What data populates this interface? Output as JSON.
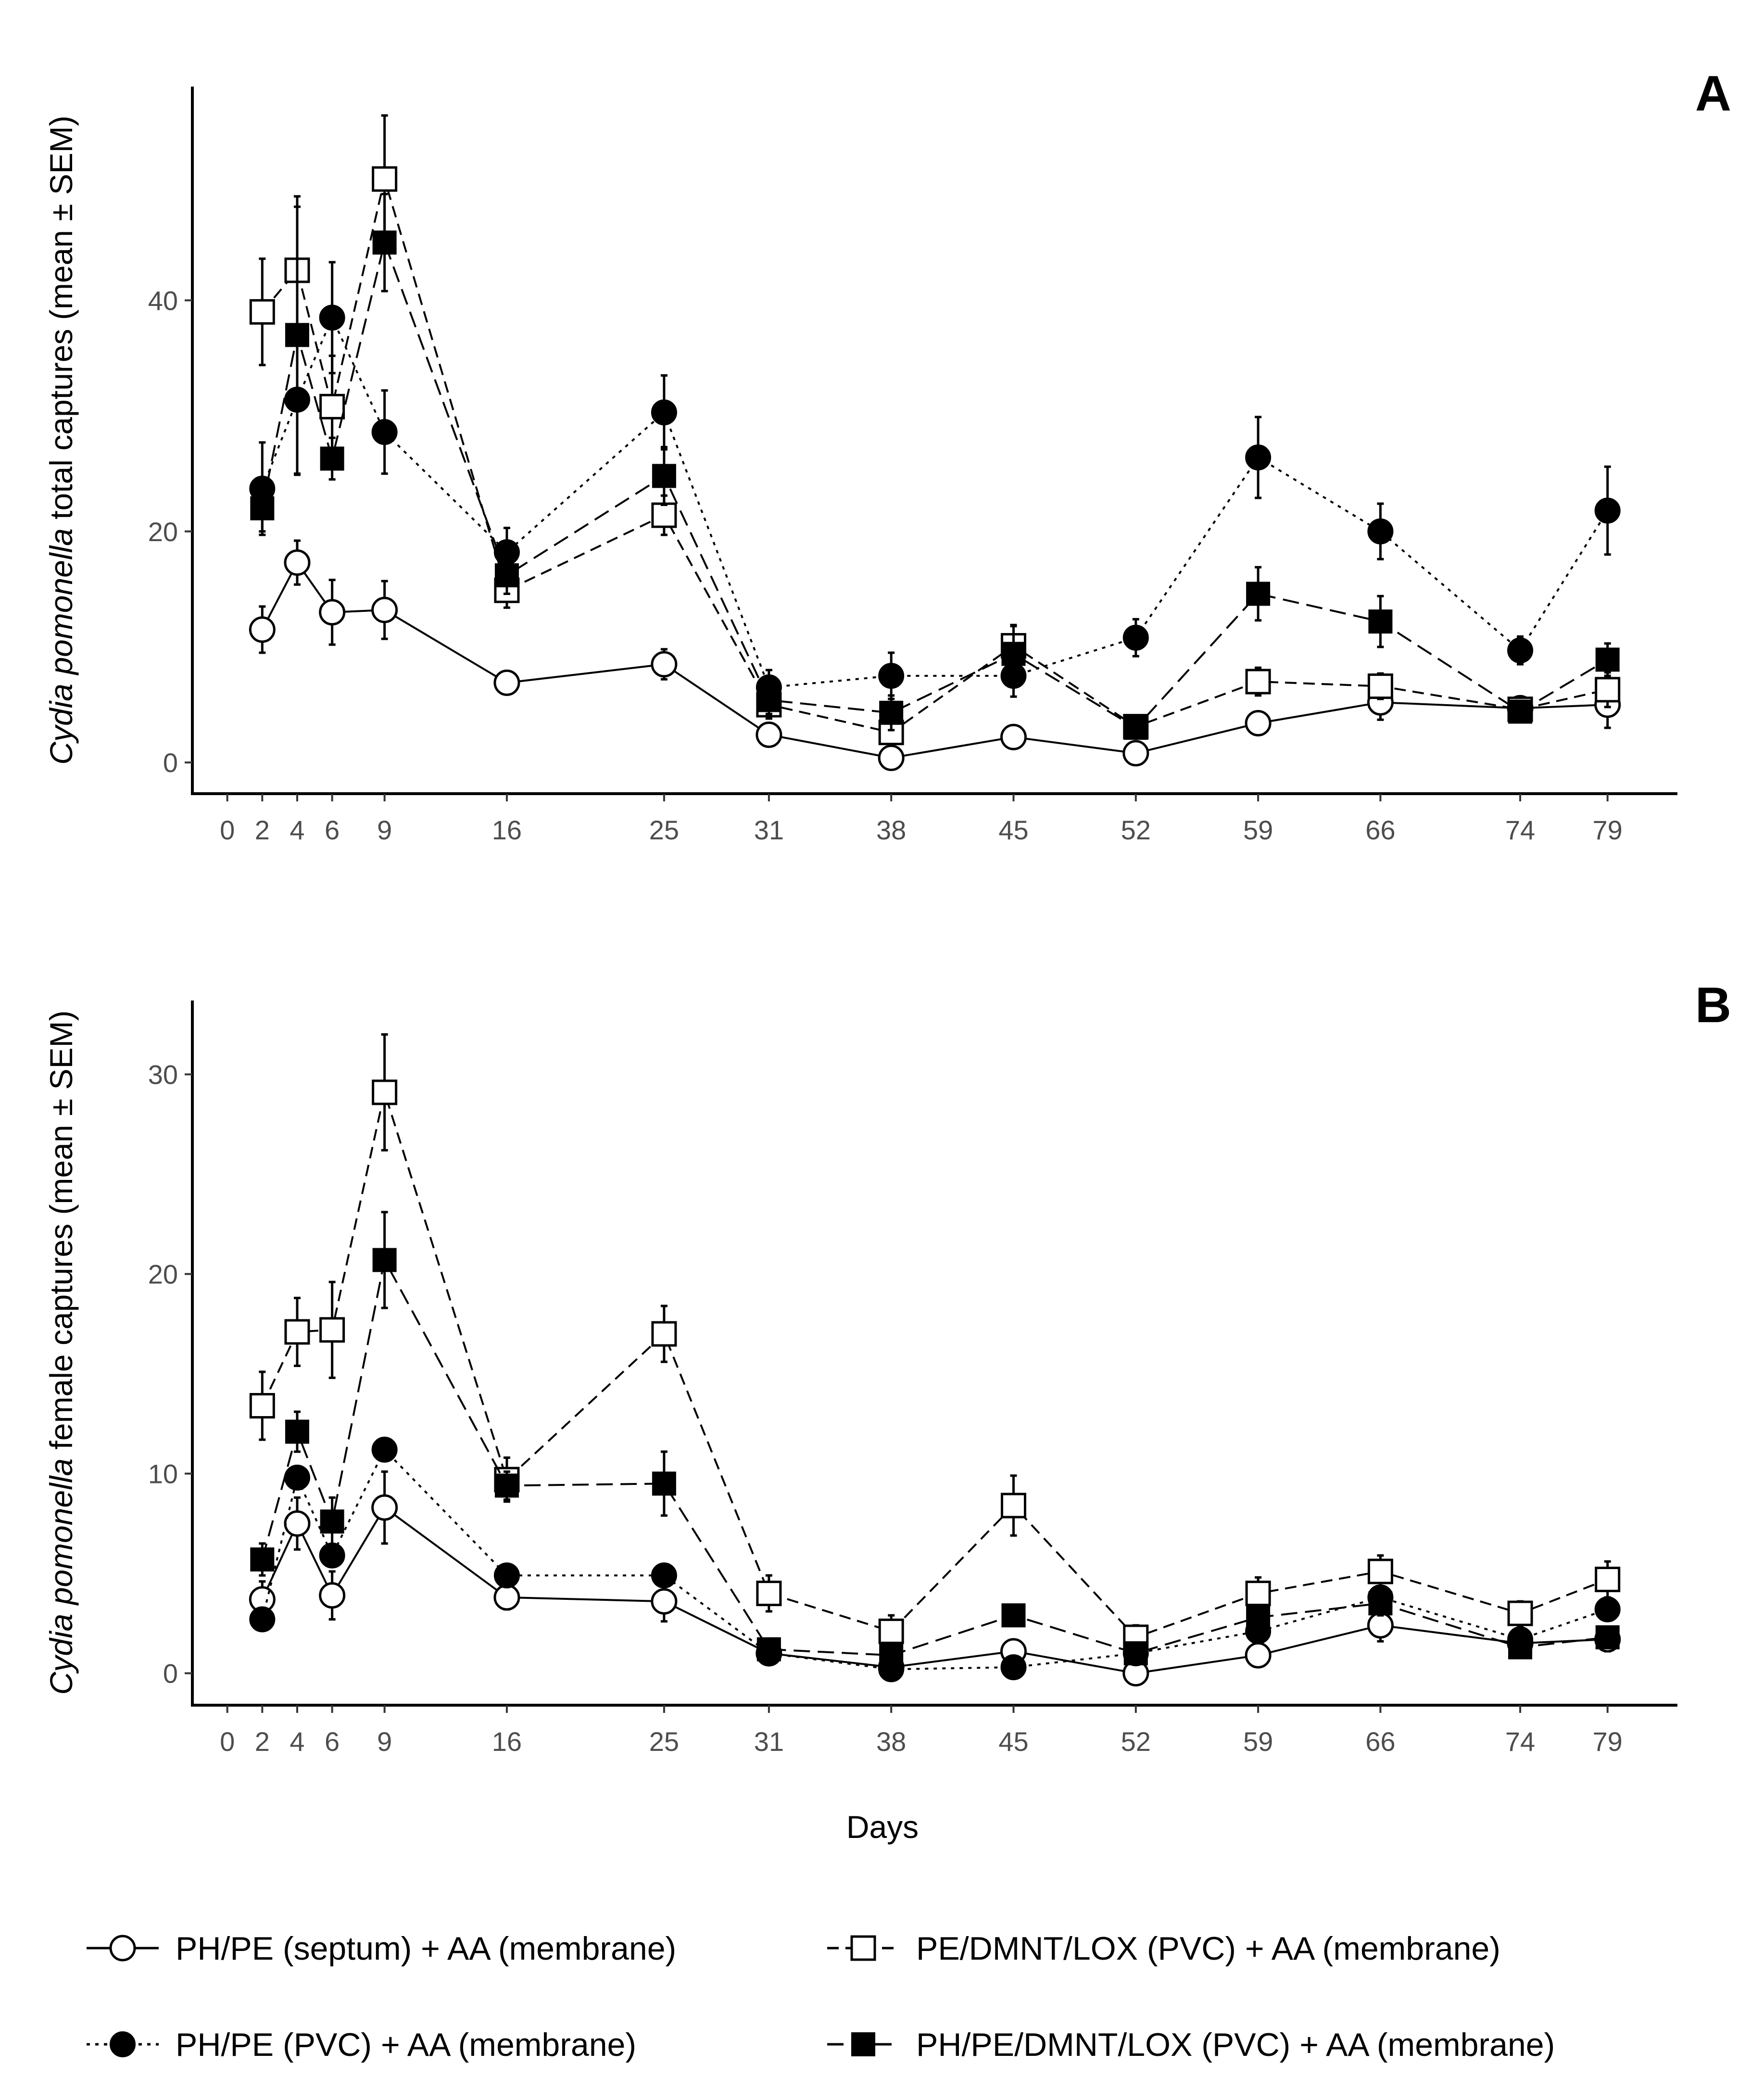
{
  "figure": {
    "x_axis_title": "Days"
  },
  "legend": [
    {
      "series_id": "s1",
      "label": "PH/PE (septum) + AA (membrane)"
    },
    {
      "series_id": "s3",
      "label": "PE/DMNT/LOX (PVC) + AA (membrane)"
    },
    {
      "series_id": "s2",
      "label": "PH/PE (PVC) + AA (membrane)"
    },
    {
      "series_id": "s4",
      "label": "PH/PE/DMNT/LOX (PVC) + AA (membrane)"
    }
  ],
  "chart_data": [
    {
      "type": "line",
      "panel": "A",
      "ylabel_italic": "Cydia pomonella",
      "ylabel_rest": " total captures (mean ± SEM)",
      "x_ticks": [
        0,
        2,
        4,
        6,
        9,
        16,
        25,
        31,
        38,
        45,
        52,
        59,
        66,
        74,
        79
      ],
      "y_ticks": [
        0,
        20,
        40
      ],
      "xlim": [
        -2,
        83
      ],
      "ylim": [
        -2.7,
        58.5
      ],
      "x": [
        2,
        4,
        6,
        9,
        16,
        25,
        31,
        38,
        45,
        52,
        59,
        66,
        74,
        79
      ],
      "series": [
        {
          "id": "s1",
          "marker": "open-circle",
          "line": "solid",
          "values": [
            11.5,
            17.3,
            13.0,
            13.2,
            6.9,
            8.5,
            2.4,
            0.4,
            2.2,
            0.8,
            3.4,
            5.2,
            4.7,
            5.0
          ],
          "errors": [
            2.0,
            1.9,
            2.8,
            2.5,
            0.6,
            1.3,
            0.8,
            0.3,
            0.7,
            0.5,
            0.8,
            1.5,
            0.6,
            2.0
          ]
        },
        {
          "id": "s2",
          "marker": "filled-circle",
          "line": "dotted",
          "values": [
            23.7,
            31.4,
            38.5,
            28.6,
            18.2,
            30.3,
            6.5,
            7.5,
            7.5,
            10.8,
            26.4,
            20.0,
            9.7,
            21.8
          ],
          "errors": [
            4.0,
            6.5,
            4.8,
            3.6,
            2.1,
            3.2,
            1.5,
            2.0,
            1.8,
            1.6,
            3.5,
            2.4,
            1.2,
            3.8
          ]
        },
        {
          "id": "s3",
          "marker": "open-square",
          "line": "dashed",
          "values": [
            39.0,
            42.6,
            30.8,
            50.5,
            14.9,
            21.4,
            5.0,
            2.6,
            10.1,
            3.1,
            7.0,
            6.6,
            4.6,
            6.3
          ],
          "errors": [
            4.6,
            5.5,
            4.4,
            5.5,
            1.5,
            1.7,
            1.2,
            1.0,
            1.8,
            0.8,
            1.2,
            1.1,
            0.6,
            1.5
          ]
        },
        {
          "id": "s4",
          "marker": "filled-square",
          "line": "longdash",
          "values": [
            22.0,
            37.0,
            26.3,
            45.0,
            16.2,
            24.8,
            5.4,
            4.3,
            9.4,
            3.0,
            14.6,
            12.2,
            4.4,
            8.9
          ],
          "errors": [
            2.0,
            12.0,
            1.8,
            4.2,
            1.6,
            2.5,
            1.2,
            1.5,
            2.4,
            0.8,
            2.3,
            2.2,
            0.6,
            1.4
          ]
        }
      ]
    },
    {
      "type": "line",
      "panel": "B",
      "ylabel_italic": "Cydia pomonella",
      "ylabel_rest": " female captures (mean ± SEM)",
      "x_ticks": [
        0,
        2,
        4,
        6,
        9,
        16,
        25,
        31,
        38,
        45,
        52,
        59,
        66,
        74,
        79
      ],
      "y_ticks": [
        0,
        10,
        20,
        30
      ],
      "xlim": [
        -2,
        83
      ],
      "ylim": [
        -1.6,
        33.7
      ],
      "x": [
        2,
        4,
        6,
        9,
        16,
        25,
        31,
        38,
        45,
        52,
        59,
        66,
        74,
        79
      ],
      "series": [
        {
          "id": "s1",
          "marker": "open-circle",
          "line": "solid",
          "values": [
            3.7,
            7.5,
            3.9,
            8.3,
            3.8,
            3.6,
            1.0,
            0.3,
            1.1,
            0.0,
            0.9,
            2.4,
            1.5,
            1.7
          ],
          "errors": [
            0.9,
            1.3,
            1.2,
            1.8,
            0.6,
            1.0,
            0.3,
            0.2,
            0.5,
            0.1,
            0.4,
            0.8,
            0.3,
            0.6
          ]
        },
        {
          "id": "s2",
          "marker": "filled-circle",
          "line": "dotted",
          "values": [
            2.7,
            9.8,
            5.9,
            11.2,
            4.9,
            4.9,
            1.0,
            0.2,
            0.3,
            1.0,
            2.1,
            3.8,
            1.7,
            3.2
          ]
        },
        {
          "id": "s3",
          "marker": "open-square",
          "line": "dashed",
          "values": [
            13.4,
            17.1,
            17.2,
            29.1,
            9.7,
            17.0,
            4.0,
            2.1,
            8.4,
            1.8,
            4.0,
            5.1,
            3.0,
            4.7
          ],
          "errors": [
            1.7,
            1.7,
            2.4,
            2.9,
            1.1,
            1.4,
            0.9,
            0.8,
            1.5,
            0.6,
            0.8,
            0.8,
            0.6,
            0.9
          ]
        },
        {
          "id": "s4",
          "marker": "filled-square",
          "line": "longdash",
          "values": [
            5.7,
            12.1,
            7.6,
            20.7,
            9.4,
            9.5,
            1.2,
            0.9,
            2.9,
            1.0,
            2.8,
            3.5,
            1.3,
            1.8
          ],
          "errors": [
            0.8,
            1.0,
            1.2,
            2.4,
            0.7,
            1.6,
            0.3,
            0.3,
            0.4,
            0.3,
            0.6,
            0.6,
            0.3,
            0.5
          ]
        }
      ]
    }
  ]
}
